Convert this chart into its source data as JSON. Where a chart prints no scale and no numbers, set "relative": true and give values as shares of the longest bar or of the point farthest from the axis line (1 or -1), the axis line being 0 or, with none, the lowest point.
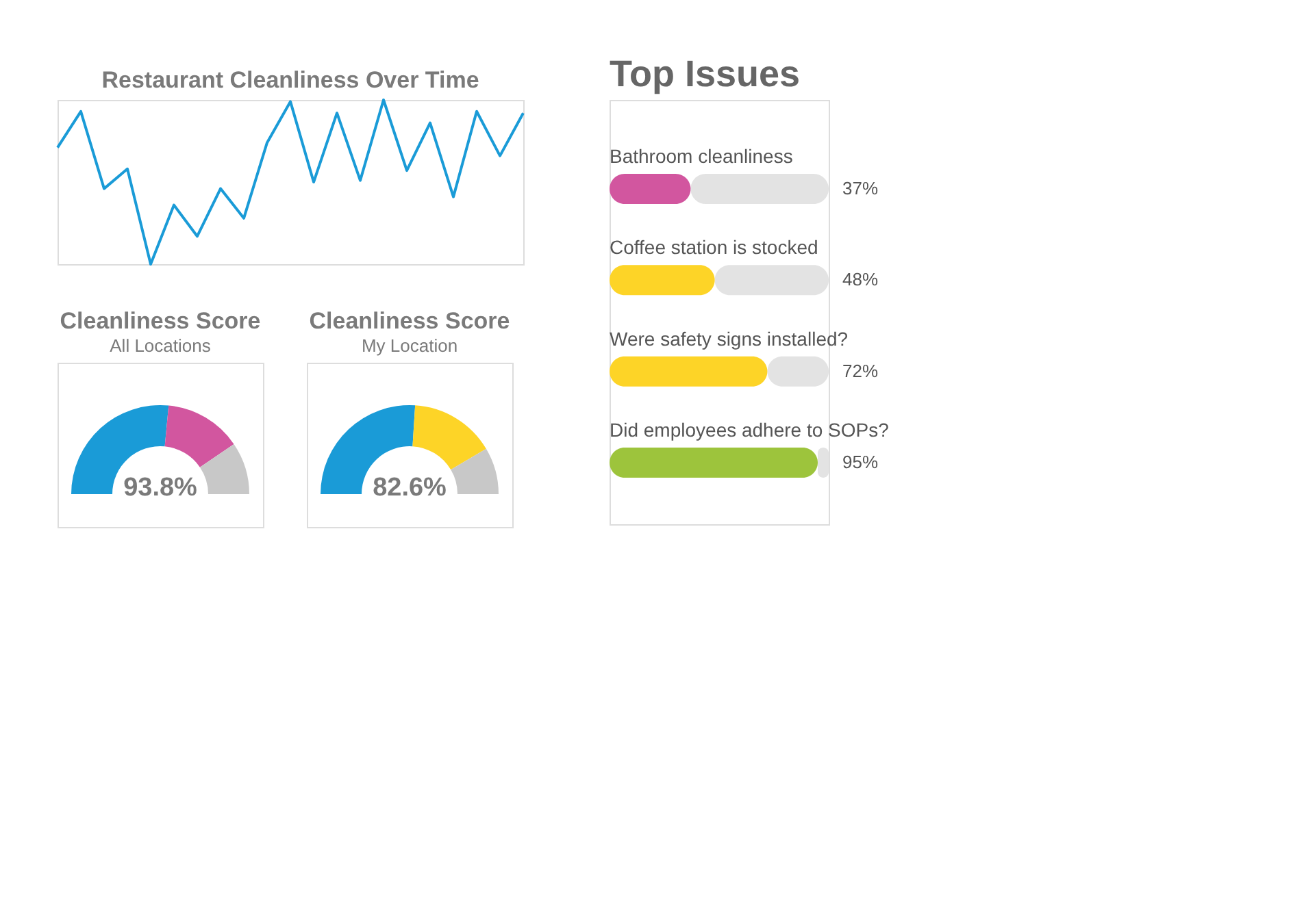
{
  "chart_data": [
    {
      "type": "line",
      "title": "Restaurant Cleanliness Over Time",
      "relative": true,
      "color": "#1a9bd7",
      "marker": "none",
      "line_style": "solid",
      "categories": [
        null,
        null,
        null,
        null,
        null,
        null,
        null,
        null,
        null,
        null,
        null,
        null,
        null,
        null,
        null,
        null,
        null,
        null,
        null,
        null,
        null
      ],
      "values": [
        0.71,
        0.93,
        0.46,
        0.58,
        0,
        0.36,
        0.17,
        0.46,
        0.28,
        0.74,
        0.99,
        0.5,
        0.92,
        0.51,
        1,
        0.57,
        0.86,
        0.41,
        0.93,
        0.66,
        0.92
      ]
    },
    {
      "type": "donut",
      "title": "Cleanliness Score",
      "subtitle": "All Locations",
      "categories": [
        null,
        null,
        null
      ],
      "values": [
        53,
        28,
        19
      ],
      "colors": [
        "#1a9bd7",
        "#d2569f",
        "#c8c8c8"
      ],
      "annotations": [
        "93.8%"
      ]
    },
    {
      "type": "donut",
      "title": "Cleanliness Score",
      "subtitle": "My Location",
      "categories": [
        null,
        null,
        null
      ],
      "values": [
        52,
        31,
        17
      ],
      "colors": [
        "#1a9bd7",
        "#fdd427",
        "#c8c8c8"
      ],
      "annotations": [
        "82.6%"
      ]
    },
    {
      "type": "bar",
      "title": "Top Issues",
      "orientation": "horizontal",
      "stacked": true,
      "xlim": [
        0,
        100
      ],
      "tick_labels": false,
      "categories": [
        "Bathroom cleanliness",
        "Coffee station is stocked",
        "Were safety signs installed?",
        "Did employees adhere to SOPs?"
      ],
      "series": [
        {
          "colors": [
            "#d2569f",
            "#fdd427",
            "#fdd427",
            "#9dc43c"
          ],
          "values": [
            37,
            48,
            72,
            95
          ],
          "value_labels": [
            "37%",
            "48%",
            "72%",
            "95%"
          ]
        },
        {
          "color": "#e3e3e3",
          "values": [
            63,
            52,
            28,
            5
          ]
        }
      ]
    }
  ]
}
